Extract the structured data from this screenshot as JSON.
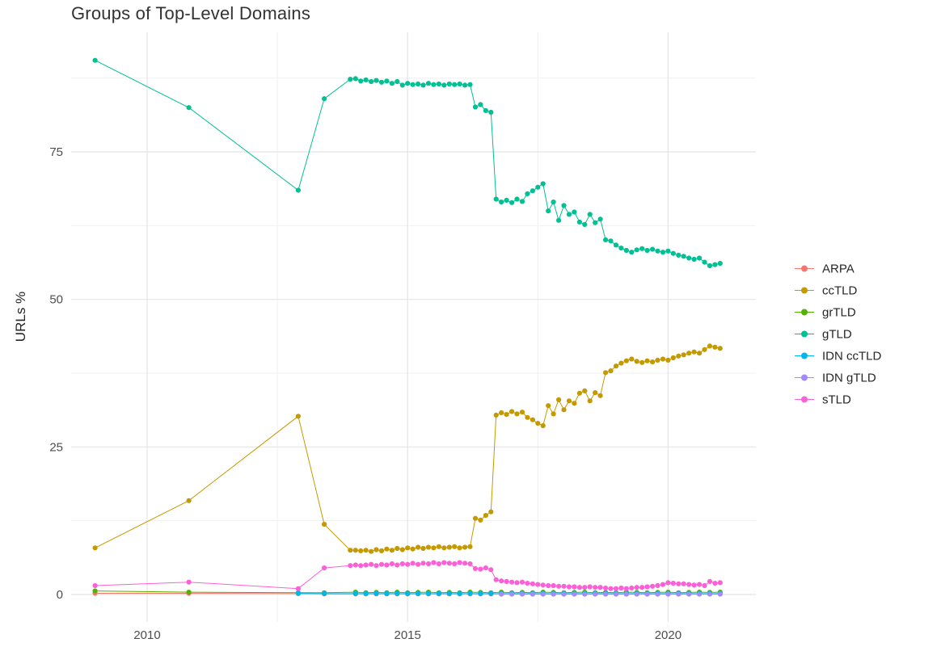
{
  "chart_data": {
    "type": "line",
    "title": "Groups of Top-Level Domains",
    "xlabel": "",
    "ylabel": "URLs %",
    "x_ticks": [
      2010,
      2015,
      2020
    ],
    "x_minor_ticks": [
      2012.5,
      2017.5
    ],
    "y_ticks": [
      0,
      25,
      50,
      75
    ],
    "y_minor_ticks": [
      12.5,
      37.5,
      62.5,
      87.5
    ],
    "xlim": [
      2008.5,
      2021.7
    ],
    "ylim": [
      -4.6,
      95.3
    ],
    "grid": true,
    "legend_position": "right",
    "background_color": "#FFFFFF",
    "grid_major_color": "#E4E4E4",
    "grid_minor_color": "#F1F1F1",
    "axis_text_color": "#4D4D4D",
    "series": [
      {
        "name": "ARPA",
        "color": "#F8766D",
        "x": [
          2009,
          2010.8,
          2012.9,
          2013.4,
          2014,
          2014.2,
          2014.4,
          2014.6,
          2014.8,
          2015,
          2015.2,
          2015.4,
          2015.6,
          2015.8,
          2016,
          2016.2,
          2016.4,
          2016.6,
          2016.8,
          2017,
          2017.2,
          2017.4,
          2017.6,
          2017.8,
          2018,
          2018.2,
          2018.4,
          2018.6,
          2018.8,
          2019,
          2019.2,
          2019.4,
          2019.6,
          2019.8,
          2020,
          2020.2,
          2020.4,
          2020.6,
          2020.8,
          2021
        ],
        "y": [
          0.2,
          0.2,
          0.15,
          0.1,
          0.1,
          0.1,
          0.1,
          0.1,
          0.1,
          0.1,
          0.1,
          0.1,
          0.1,
          0.1,
          0.1,
          0.1,
          0.1,
          0.1,
          0.1,
          0.1,
          0.1,
          0.1,
          0.1,
          0.1,
          0.1,
          0.1,
          0.1,
          0.1,
          0.1,
          0.1,
          0.1,
          0.1,
          0.1,
          0.1,
          0.1,
          0.1,
          0.1,
          0.1,
          0.1,
          0.1
        ]
      },
      {
        "name": "ccTLD",
        "color": "#C49A00",
        "x": [
          2009,
          2010.8,
          2012.9,
          2013.4,
          2013.9,
          2014,
          2014.1,
          2014.2,
          2014.3,
          2014.4,
          2014.5,
          2014.6,
          2014.7,
          2014.8,
          2014.9,
          2015,
          2015.1,
          2015.2,
          2015.3,
          2015.4,
          2015.5,
          2015.6,
          2015.7,
          2015.8,
          2015.9,
          2016,
          2016.1,
          2016.2,
          2016.3,
          2016.4,
          2016.5,
          2016.6,
          2016.7,
          2016.8,
          2016.9,
          2017,
          2017.1,
          2017.2,
          2017.3,
          2017.4,
          2017.5,
          2017.6,
          2017.7,
          2017.8,
          2017.9,
          2018,
          2018.1,
          2018.2,
          2018.3,
          2018.4,
          2018.5,
          2018.6,
          2018.7,
          2018.8,
          2018.9,
          2019,
          2019.1,
          2019.2,
          2019.3,
          2019.4,
          2019.5,
          2019.6,
          2019.7,
          2019.8,
          2019.9,
          2020,
          2020.1,
          2020.2,
          2020.3,
          2020.4,
          2020.5,
          2020.6,
          2020.7,
          2020.8,
          2020.9,
          2021
        ],
        "y": [
          7.9,
          15.9,
          30.2,
          11.9,
          7.5,
          7.5,
          7.4,
          7.5,
          7.3,
          7.6,
          7.4,
          7.7,
          7.5,
          7.8,
          7.6,
          7.9,
          7.7,
          8.0,
          7.8,
          8.0,
          7.9,
          8.1,
          7.9,
          8.0,
          8.1,
          7.9,
          8.0,
          8.1,
          12.9,
          12.6,
          13.4,
          14.0,
          30.4,
          30.8,
          30.5,
          31.0,
          30.6,
          30.9,
          30.0,
          29.6,
          29.0,
          28.6,
          32.0,
          30.6,
          33.0,
          31.3,
          32.8,
          32.4,
          34.1,
          34.5,
          32.8,
          34.2,
          33.7,
          37.6,
          37.9,
          38.7,
          39.2,
          39.6,
          39.9,
          39.5,
          39.3,
          39.6,
          39.4,
          39.7,
          39.9,
          39.7,
          40.1,
          40.4,
          40.6,
          40.9,
          41.1,
          40.9,
          41.5,
          42.1,
          41.9,
          41.7
        ]
      },
      {
        "name": "grTLD",
        "color": "#53B400",
        "x": [
          2009,
          2010.8,
          2012.9,
          2013.4,
          2014,
          2014.2,
          2014.4,
          2014.6,
          2014.8,
          2015,
          2015.2,
          2015.4,
          2015.6,
          2015.8,
          2016,
          2016.2,
          2016.4,
          2016.6,
          2016.8,
          2017,
          2017.2,
          2017.4,
          2017.6,
          2017.8,
          2018,
          2018.2,
          2018.4,
          2018.6,
          2018.8,
          2019,
          2019.2,
          2019.4,
          2019.6,
          2019.8,
          2020,
          2020.2,
          2020.4,
          2020.6,
          2020.8,
          2021
        ],
        "y": [
          0.6,
          0.4,
          0.3,
          0.3,
          0.4,
          0.3,
          0.35,
          0.3,
          0.4,
          0.3,
          0.35,
          0.4,
          0.3,
          0.35,
          0.3,
          0.4,
          0.35,
          0.3,
          0.4,
          0.3,
          0.35,
          0.3,
          0.4,
          0.35,
          0.3,
          0.35,
          0.4,
          0.3,
          0.35,
          0.3,
          0.4,
          0.35,
          0.3,
          0.35,
          0.4,
          0.3,
          0.35,
          0.4,
          0.35,
          0.4
        ]
      },
      {
        "name": "gTLD",
        "color": "#00C094",
        "x": [
          2009,
          2010.8,
          2012.9,
          2013.4,
          2013.9,
          2014,
          2014.1,
          2014.2,
          2014.3,
          2014.4,
          2014.5,
          2014.6,
          2014.7,
          2014.8,
          2014.9,
          2015,
          2015.1,
          2015.2,
          2015.3,
          2015.4,
          2015.5,
          2015.6,
          2015.7,
          2015.8,
          2015.9,
          2016,
          2016.1,
          2016.2,
          2016.3,
          2016.4,
          2016.5,
          2016.6,
          2016.7,
          2016.8,
          2016.9,
          2017,
          2017.1,
          2017.2,
          2017.3,
          2017.4,
          2017.5,
          2017.6,
          2017.7,
          2017.8,
          2017.9,
          2018,
          2018.1,
          2018.2,
          2018.3,
          2018.4,
          2018.5,
          2018.6,
          2018.7,
          2018.8,
          2018.9,
          2019,
          2019.1,
          2019.2,
          2019.3,
          2019.4,
          2019.5,
          2019.6,
          2019.7,
          2019.8,
          2019.9,
          2020,
          2020.1,
          2020.2,
          2020.3,
          2020.4,
          2020.5,
          2020.6,
          2020.7,
          2020.8,
          2020.9,
          2021
        ],
        "y": [
          90.5,
          82.5,
          68.5,
          84.0,
          87.3,
          87.4,
          87.0,
          87.2,
          86.9,
          87.1,
          86.8,
          87.0,
          86.6,
          86.9,
          86.3,
          86.6,
          86.4,
          86.5,
          86.3,
          86.6,
          86.4,
          86.5,
          86.3,
          86.5,
          86.4,
          86.5,
          86.3,
          86.4,
          82.6,
          83.0,
          82.0,
          81.7,
          67.0,
          66.5,
          66.8,
          66.4,
          67.0,
          66.6,
          67.9,
          68.4,
          69.0,
          69.6,
          65.0,
          66.5,
          63.4,
          65.9,
          64.4,
          64.8,
          63.1,
          62.7,
          64.4,
          63.0,
          63.6,
          60.1,
          59.9,
          59.2,
          58.7,
          58.3,
          58.0,
          58.4,
          58.6,
          58.3,
          58.5,
          58.2,
          58.0,
          58.2,
          57.8,
          57.5,
          57.3,
          57.0,
          56.8,
          57.0,
          56.3,
          55.7,
          55.9,
          56.1
        ]
      },
      {
        "name": "IDN ccTLD",
        "color": "#00B6EB",
        "x": [
          2012.9,
          2013.4,
          2014,
          2014.2,
          2014.4,
          2014.6,
          2014.8,
          2015,
          2015.2,
          2015.4,
          2015.6,
          2015.8,
          2016,
          2016.2,
          2016.4,
          2016.6,
          2016.8,
          2017,
          2017.2,
          2017.4,
          2017.6,
          2017.8,
          2018,
          2018.2,
          2018.4,
          2018.6,
          2018.8,
          2019,
          2019.2,
          2019.4,
          2019.6,
          2019.8,
          2020,
          2020.2,
          2020.4,
          2020.6,
          2020.8,
          2021
        ],
        "y": [
          0.2,
          0.15,
          0.15,
          0.15,
          0.15,
          0.15,
          0.15,
          0.15,
          0.15,
          0.15,
          0.15,
          0.15,
          0.15,
          0.15,
          0.15,
          0.15,
          0.15,
          0.15,
          0.15,
          0.15,
          0.15,
          0.15,
          0.15,
          0.15,
          0.15,
          0.15,
          0.15,
          0.15,
          0.15,
          0.15,
          0.15,
          0.15,
          0.15,
          0.15,
          0.15,
          0.15,
          0.15,
          0.15
        ]
      },
      {
        "name": "IDN gTLD",
        "color": "#A58AFF",
        "x": [
          2016.8,
          2017,
          2017.2,
          2017.4,
          2017.6,
          2017.8,
          2018,
          2018.2,
          2018.4,
          2018.6,
          2018.8,
          2019,
          2019.2,
          2019.4,
          2019.6,
          2019.8,
          2020,
          2020.2,
          2020.4,
          2020.6,
          2020.8,
          2021
        ],
        "y": [
          0.05,
          0.05,
          0.05,
          0.05,
          0.05,
          0.05,
          0.05,
          0.05,
          0.05,
          0.05,
          0.05,
          0.05,
          0.05,
          0.05,
          0.05,
          0.05,
          0.05,
          0.05,
          0.05,
          0.05,
          0.05,
          0.05
        ]
      },
      {
        "name": "sTLD",
        "color": "#FB61D7",
        "x": [
          2009,
          2010.8,
          2012.9,
          2013.4,
          2013.9,
          2014,
          2014.1,
          2014.2,
          2014.3,
          2014.4,
          2014.5,
          2014.6,
          2014.7,
          2014.8,
          2014.9,
          2015,
          2015.1,
          2015.2,
          2015.3,
          2015.4,
          2015.5,
          2015.6,
          2015.7,
          2015.8,
          2015.9,
          2016,
          2016.1,
          2016.2,
          2016.3,
          2016.4,
          2016.5,
          2016.6,
          2016.7,
          2016.8,
          2016.9,
          2017,
          2017.1,
          2017.2,
          2017.3,
          2017.4,
          2017.5,
          2017.6,
          2017.7,
          2017.8,
          2017.9,
          2018,
          2018.1,
          2018.2,
          2018.3,
          2018.4,
          2018.5,
          2018.6,
          2018.7,
          2018.8,
          2018.9,
          2019,
          2019.1,
          2019.2,
          2019.3,
          2019.4,
          2019.5,
          2019.6,
          2019.7,
          2019.8,
          2019.9,
          2020,
          2020.1,
          2020.2,
          2020.3,
          2020.4,
          2020.5,
          2020.6,
          2020.7,
          2020.8,
          2020.9,
          2021
        ],
        "y": [
          1.5,
          2.1,
          1.0,
          4.5,
          4.9,
          5.0,
          4.9,
          5.0,
          5.1,
          4.9,
          5.1,
          5.0,
          5.2,
          5.0,
          5.2,
          5.1,
          5.3,
          5.1,
          5.3,
          5.2,
          5.4,
          5.2,
          5.4,
          5.3,
          5.2,
          5.4,
          5.3,
          5.2,
          4.4,
          4.3,
          4.5,
          4.2,
          2.5,
          2.3,
          2.2,
          2.1,
          2.0,
          2.1,
          1.9,
          1.8,
          1.7,
          1.6,
          1.5,
          1.5,
          1.4,
          1.4,
          1.3,
          1.3,
          1.2,
          1.2,
          1.3,
          1.2,
          1.2,
          1.1,
          1.0,
          1.0,
          1.1,
          1.0,
          1.1,
          1.2,
          1.2,
          1.3,
          1.4,
          1.5,
          1.7,
          2.0,
          1.9,
          1.8,
          1.8,
          1.7,
          1.6,
          1.7,
          1.5,
          2.2,
          1.9,
          2.0
        ]
      }
    ]
  }
}
